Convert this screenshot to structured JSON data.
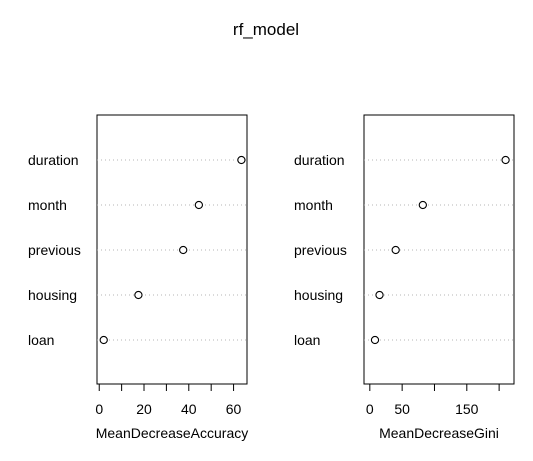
{
  "title": "rf_model",
  "chart_data": [
    {
      "type": "scatter",
      "subtype": "dotchart",
      "xlabel": "MeanDecreaseAccuracy",
      "categories": [
        "duration",
        "month",
        "previous",
        "housing",
        "loan"
      ],
      "values": [
        63.5,
        44.5,
        37.5,
        17.5,
        2
      ],
      "xlim": [
        -1,
        66
      ],
      "xticks": [
        0,
        10,
        20,
        30,
        40,
        50,
        60
      ],
      "xtick_labels": [
        "0",
        "",
        "20",
        "",
        "40",
        "",
        "60"
      ],
      "grid": "dotted horizontal"
    },
    {
      "type": "scatter",
      "subtype": "dotchart",
      "xlabel": "MeanDecreaseGini",
      "categories": [
        "duration",
        "month",
        "previous",
        "housing",
        "loan"
      ],
      "values": [
        210,
        82,
        40,
        15,
        8
      ],
      "xlim": [
        -9,
        223
      ],
      "xticks": [
        0,
        50,
        100,
        150,
        200
      ],
      "xtick_labels": [
        "0",
        "50",
        "",
        "150",
        ""
      ],
      "grid": "dotted horizontal"
    }
  ]
}
